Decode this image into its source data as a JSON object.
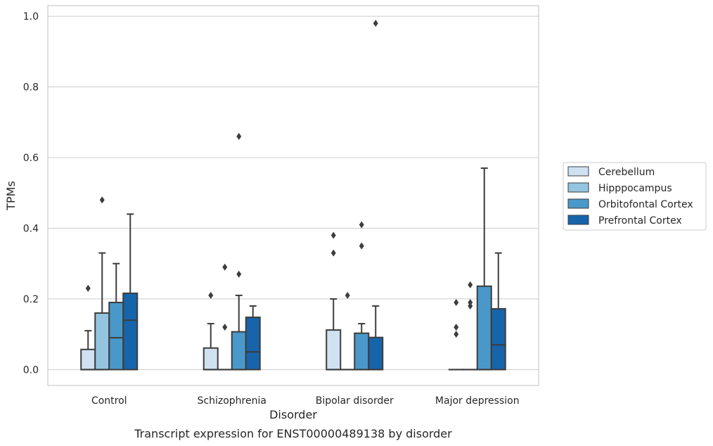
{
  "caption": "Transcript expression for ENST00000489138 by disorder",
  "chart_data": {
    "type": "box",
    "xlabel": "Disorder",
    "ylabel": "TPMs",
    "ylim": [
      -0.045,
      1.03
    ],
    "yticks": [
      "0.0",
      "0.2",
      "0.4",
      "0.6",
      "0.8",
      "1.0"
    ],
    "grid": true,
    "legend_position": "right",
    "categories": [
      "Control",
      "Schizophrenia",
      "Bipolar disorder",
      "Major depression"
    ],
    "series": [
      {
        "name": "Cerebellum",
        "color": "#d0e1f2",
        "boxes": [
          {
            "q1": 0.0,
            "median": 0.0,
            "q3": 0.057,
            "whisker_low": 0.0,
            "whisker_high": 0.11,
            "outliers": [
              0.23
            ]
          },
          {
            "q1": 0.0,
            "median": 0.0,
            "q3": 0.061,
            "whisker_low": 0.0,
            "whisker_high": 0.13,
            "outliers": [
              0.21
            ]
          },
          {
            "q1": 0.0,
            "median": 0.0,
            "q3": 0.112,
            "whisker_low": 0.0,
            "whisker_high": 0.2,
            "outliers": [
              0.33,
              0.38
            ]
          },
          {
            "q1": 0.0,
            "median": 0.0,
            "q3": 0.0,
            "whisker_low": 0.0,
            "whisker_high": 0.0,
            "outliers": [
              0.1,
              0.12,
              0.19
            ]
          }
        ]
      },
      {
        "name": "Hipppocampus",
        "color": "#94c4df",
        "boxes": [
          {
            "q1": 0.0,
            "median": 0.0,
            "q3": 0.16,
            "whisker_low": 0.0,
            "whisker_high": 0.33,
            "outliers": [
              0.48
            ]
          },
          {
            "q1": 0.0,
            "median": 0.0,
            "q3": 0.0,
            "whisker_low": 0.0,
            "whisker_high": 0.0,
            "outliers": [
              0.12,
              0.29
            ]
          },
          {
            "q1": 0.0,
            "median": 0.0,
            "q3": 0.0,
            "whisker_low": 0.0,
            "whisker_high": 0.0,
            "outliers": [
              0.21
            ]
          },
          {
            "q1": 0.0,
            "median": 0.0,
            "q3": 0.0,
            "whisker_low": 0.0,
            "whisker_high": 0.0,
            "outliers": [
              0.18,
              0.19,
              0.24
            ]
          }
        ]
      },
      {
        "name": "Orbitofontal Cortex",
        "color": "#4a98c9",
        "boxes": [
          {
            "q1": 0.0,
            "median": 0.09,
            "q3": 0.19,
            "whisker_low": 0.0,
            "whisker_high": 0.3,
            "outliers": []
          },
          {
            "q1": 0.0,
            "median": 0.0,
            "q3": 0.107,
            "whisker_low": 0.0,
            "whisker_high": 0.21,
            "outliers": [
              0.27,
              0.66
            ]
          },
          {
            "q1": 0.0,
            "median": 0.0,
            "q3": 0.103,
            "whisker_low": 0.0,
            "whisker_high": 0.13,
            "outliers": [
              0.35,
              0.41
            ]
          },
          {
            "q1": 0.0,
            "median": 0.0,
            "q3": 0.236,
            "whisker_low": 0.0,
            "whisker_high": 0.57,
            "outliers": []
          }
        ]
      },
      {
        "name": "Prefrontal Cortex",
        "color": "#1764ab",
        "boxes": [
          {
            "q1": 0.0,
            "median": 0.14,
            "q3": 0.216,
            "whisker_low": 0.0,
            "whisker_high": 0.44,
            "outliers": []
          },
          {
            "q1": 0.0,
            "median": 0.05,
            "q3": 0.148,
            "whisker_low": 0.0,
            "whisker_high": 0.18,
            "outliers": []
          },
          {
            "q1": 0.0,
            "median": 0.0,
            "q3": 0.091,
            "whisker_low": 0.0,
            "whisker_high": 0.18,
            "outliers": [
              0.98
            ]
          },
          {
            "q1": 0.0,
            "median": 0.07,
            "q3": 0.172,
            "whisker_low": 0.0,
            "whisker_high": 0.33,
            "outliers": []
          }
        ]
      }
    ]
  }
}
